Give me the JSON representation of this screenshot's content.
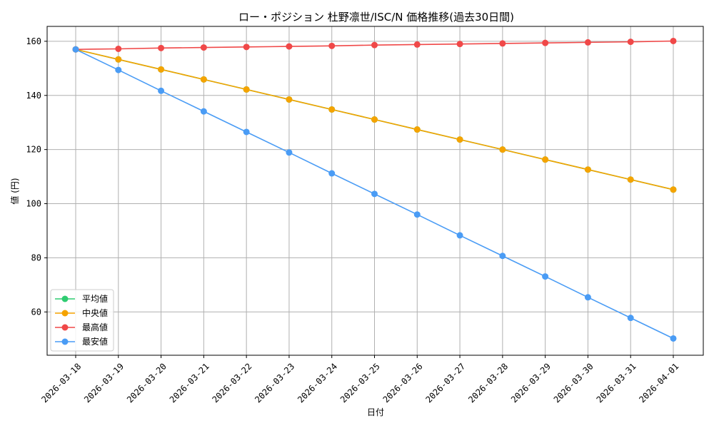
{
  "chart_data": {
    "type": "line",
    "title": "ロー・ポジション 杜野凛世/ISC/N 価格推移(過去30日間)",
    "xlabel": "日付",
    "ylabel": "値 (円)",
    "categories": [
      "2026-03-18",
      "2026-03-19",
      "2026-03-20",
      "2026-03-21",
      "2026-03-22",
      "2026-03-23",
      "2026-03-24",
      "2026-03-25",
      "2026-03-26",
      "2026-03-27",
      "2026-03-28",
      "2026-03-29",
      "2026-03-30",
      "2026-03-31",
      "2026-04-01"
    ],
    "yticks": [
      60,
      80,
      100,
      120,
      140,
      160
    ],
    "ylim": [
      44,
      165.5
    ],
    "grid": true,
    "legend_position": "lower-left",
    "series": [
      {
        "name": "平均値",
        "color": "#2ecc71",
        "values": [
          157,
          153.3,
          149.6,
          145.9,
          142.2,
          138.5,
          134.8,
          131.1,
          127.4,
          123.7,
          120.0,
          116.3,
          112.6,
          108.9,
          105.2
        ]
      },
      {
        "name": "中央値",
        "color": "#f5a300",
        "values": [
          157,
          153.3,
          149.6,
          145.9,
          142.2,
          138.5,
          134.8,
          131.1,
          127.4,
          123.7,
          120.0,
          116.3,
          112.6,
          108.9,
          105.2
        ]
      },
      {
        "name": "最高値",
        "color": "#f04848",
        "values": [
          157,
          157.2,
          157.5,
          157.7,
          157.9,
          158.1,
          158.3,
          158.6,
          158.8,
          159.0,
          159.2,
          159.4,
          159.6,
          159.8,
          160.1
        ]
      },
      {
        "name": "最安値",
        "color": "#4a9cf5",
        "values": [
          157,
          149.4,
          141.7,
          134.1,
          126.5,
          118.9,
          111.2,
          103.6,
          96.0,
          88.3,
          80.7,
          73.1,
          65.4,
          57.8,
          50.2
        ]
      }
    ]
  }
}
